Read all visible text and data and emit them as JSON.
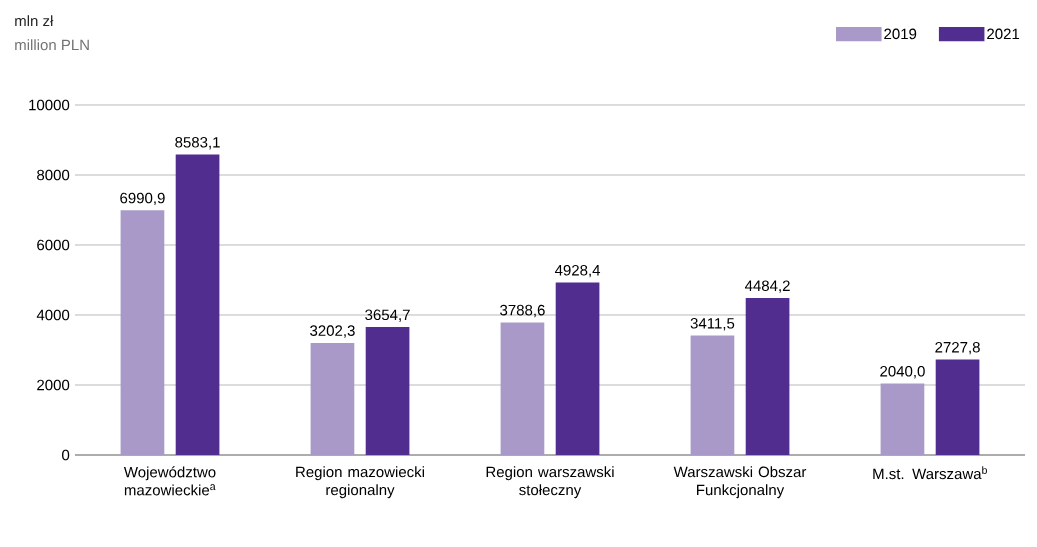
{
  "chart_data": {
    "type": "bar",
    "annotations": [
      "mln zł",
      "million PLN"
    ],
    "categories": [
      "Województwo mazowieckie$^{a}$",
      "Region mazowiecki regionalny",
      "Region warszawski stołeczny",
      "Warszawski Obszar Funkcjonalny",
      "M.st. Warszawa$^{b}$"
    ],
    "series": [
      {
        "name": "2019",
        "color": "#a899c8",
        "values": [
          6990.9,
          3202.3,
          3788.6,
          3411.5,
          2040.0
        ],
        "value_labels": [
          "6990,9",
          "3202,3",
          "3788,6",
          "3411,5",
          "2040,0"
        ]
      },
      {
        "name": "2021",
        "color": "#512d8f",
        "values": [
          8583.1,
          3654.7,
          4928.4,
          4484.2,
          2727.8
        ],
        "value_labels": [
          "8583,1",
          "3654,7",
          "4928,4",
          "4484,2",
          "2727,8"
        ]
      }
    ],
    "ylim": [
      0,
      10000
    ],
    "yticks": [
      0,
      2000,
      4000,
      6000,
      8000,
      10000
    ],
    "grid": "y",
    "legend": "top right"
  }
}
